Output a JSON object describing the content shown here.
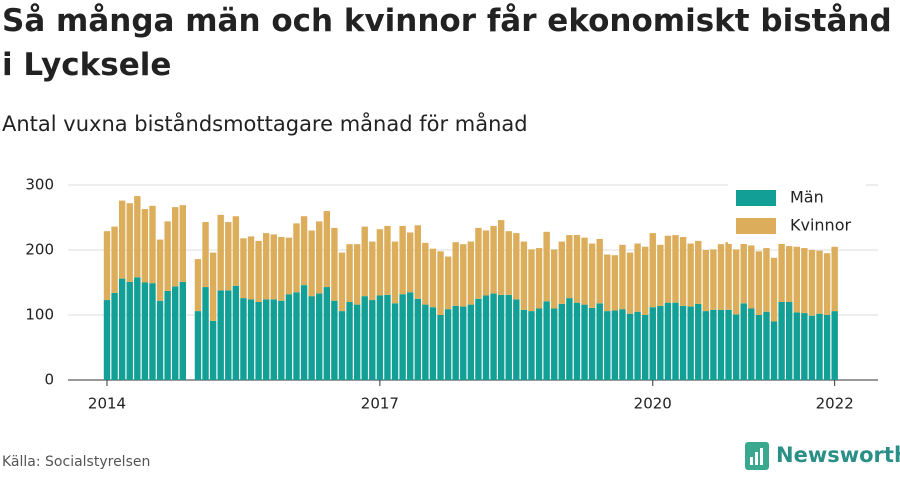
{
  "chart_data": {
    "type": "stacked_bar",
    "title": "Så många män och kvinnor får ekonomiskt bistånd i Lycksele",
    "subtitle": "Antal vuxna biståndsmottagare månad för månad",
    "categories": [
      "2014",
      null,
      null,
      null,
      null,
      null,
      null,
      null,
      null,
      null,
      null,
      null,
      null,
      null,
      null,
      null,
      null,
      null,
      null,
      null,
      null,
      null,
      null,
      null,
      null,
      null,
      null,
      null,
      null,
      null,
      null,
      null,
      null,
      null,
      null,
      null,
      "2017",
      null,
      null,
      null,
      null,
      null,
      null,
      null,
      null,
      null,
      null,
      null,
      null,
      null,
      null,
      null,
      null,
      null,
      null,
      null,
      null,
      null,
      null,
      null,
      null,
      null,
      null,
      null,
      null,
      null,
      null,
      null,
      null,
      null,
      null,
      null,
      "2020",
      null,
      null,
      null,
      null,
      null,
      null,
      null,
      null,
      null,
      null,
      null,
      null,
      null,
      null,
      null,
      null,
      null,
      null,
      null,
      null,
      null,
      null,
      null,
      "2022"
    ],
    "series": [
      {
        "name": "Män",
        "color": "#12a096",
        "values": [
          123,
          134,
          156,
          151,
          158,
          150,
          149,
          122,
          137,
          144,
          151,
          null,
          106,
          143,
          91,
          138,
          138,
          145,
          126,
          124,
          120,
          124,
          124,
          122,
          132,
          135,
          146,
          129,
          133,
          143,
          122,
          106,
          120,
          116,
          129,
          123,
          130,
          131,
          118,
          132,
          135,
          125,
          116,
          112,
          100,
          109,
          114,
          113,
          116,
          125,
          130,
          133,
          131,
          131,
          124,
          108,
          106,
          110,
          121,
          110,
          117,
          126,
          119,
          116,
          111,
          118,
          106,
          107,
          109,
          102,
          105,
          100,
          112,
          114,
          119,
          119,
          114,
          113,
          117,
          106,
          108,
          108,
          108,
          101,
          118,
          110,
          100,
          105,
          90,
          120,
          120,
          104,
          103,
          99,
          102,
          100,
          106
        ]
      },
      {
        "name": "Kvinnor",
        "color": "#dcae5c",
        "values": [
          106,
          102,
          120,
          121,
          125,
          113,
          119,
          94,
          107,
          122,
          118,
          null,
          80,
          100,
          105,
          116,
          105,
          107,
          92,
          97,
          94,
          102,
          100,
          98,
          87,
          106,
          106,
          101,
          111,
          117,
          112,
          90,
          89,
          93,
          107,
          90,
          102,
          106,
          95,
          105,
          92,
          113,
          95,
          90,
          98,
          81,
          98,
          96,
          97,
          109,
          100,
          104,
          115,
          98,
          102,
          105,
          95,
          93,
          107,
          91,
          96,
          97,
          104,
          103,
          99,
          99,
          87,
          85,
          99,
          94,
          105,
          105,
          114,
          94,
          103,
          104,
          106,
          97,
          97,
          94,
          93,
          101,
          104,
          100,
          94,
          97,
          98,
          98,
          98,
          93,
          86,
          101,
          100,
          101,
          97,
          95,
          99
        ]
      }
    ],
    "ylim": [
      0,
      300
    ],
    "yticks": [
      0,
      100,
      200,
      300
    ],
    "grid": true,
    "legend": "top-right"
  },
  "source": "Källa: Socialstyrelsen",
  "logo": "Newsworthy"
}
